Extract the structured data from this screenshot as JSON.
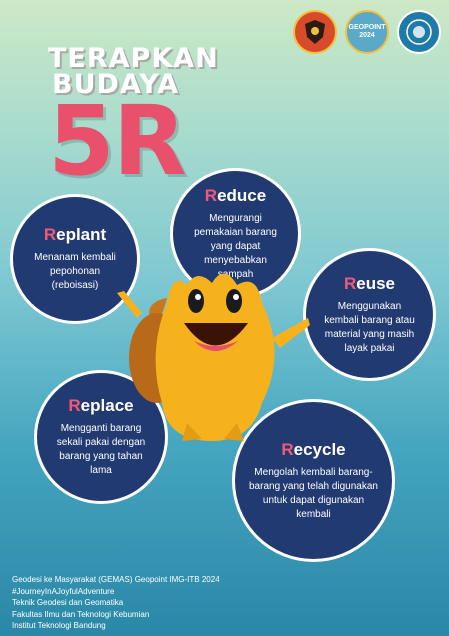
{
  "logos": {
    "logo_1_icon": "university-emblem-icon",
    "logo_2_text": "GEOPOINT",
    "logo_2_year": "2024",
    "logo_3_icon": "department-seal-icon"
  },
  "title": {
    "line1": "TERAPKAN",
    "line2": "BUDAYA",
    "big": "5R"
  },
  "items": {
    "reduce": {
      "initial": "R",
      "rest": "educe",
      "desc": "Mengurangi pemakaian barang yang dapat menyebabkan sampah"
    },
    "replant": {
      "initial": "R",
      "rest": "eplant",
      "desc": "Menanam kembali pepohonan (reboisasi)"
    },
    "reuse": {
      "initial": "R",
      "rest": "euse",
      "desc": "Menggunakan kembali barang atau material yang masih layak pakai"
    },
    "replace": {
      "initial": "R",
      "rest": "eplace",
      "desc": "Mengganti barang sekali pakai dengan barang yang tahan lama"
    },
    "recycle": {
      "initial": "R",
      "rest": "ecycle",
      "desc": "Mengolah kembali barang-barang yang telah digunakan untuk dapat digunakan kembali"
    }
  },
  "footer": {
    "line1": "Geodesi ke Masyarakat (GEMAS) Geopoint IMG-ITB 2024",
    "line2": "#JourneyInAJoyfulAdventure",
    "line3": "Teknik Geodesi dan Geomatika",
    "line4": "Fakultas Ilmu dan Teknologi Kebumian",
    "line5": "Institut Teknologi Bandung"
  },
  "colors": {
    "accent": "#e8506b",
    "circle_fill": "#223a72",
    "mascot": "#f6b21d"
  }
}
